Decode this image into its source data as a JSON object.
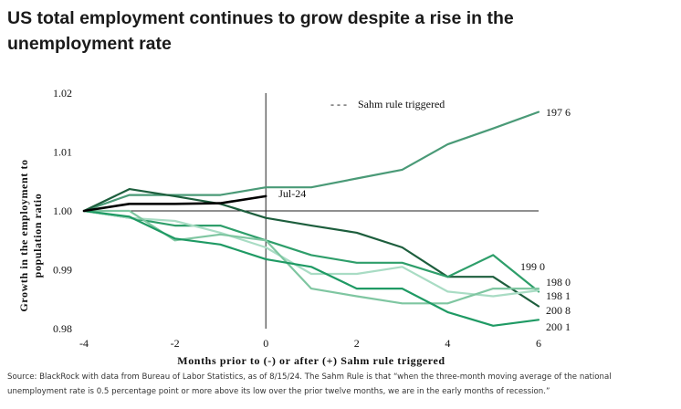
{
  "title_line1": "US total employment continues to grow despite a rise in the",
  "title_line2": "unemployment rate",
  "source_line1": "Source: BlackRock with data from Bureau of Labor Statistics, as of 8/15/24. The Sahm Rule is that “when the three-month moving average of the national",
  "source_line2": "unemployment rate is 0.5 percentage point or more above its low over the prior twelve months, we are in the early months of recession.”",
  "chart_data": {
    "type": "line",
    "xlabel": "Months prior to (-) or after (+) Sahm rule triggered",
    "ylabel_line1": "Growth in the employment to",
    "ylabel_line2": "population ratio",
    "xlim": [
      -4,
      6
    ],
    "ylim": [
      0.98,
      1.02
    ],
    "x_ticks": [
      -4,
      -2,
      0,
      2,
      4,
      6
    ],
    "y_ticks": [
      0.98,
      0.99,
      1.0,
      1.01,
      1.02
    ],
    "x_tick_labels": [
      "-4",
      "-2",
      "0",
      "2",
      "4",
      "6"
    ],
    "y_tick_labels": [
      "0.98",
      "0.99",
      "1.00",
      "1.01",
      "1.02"
    ],
    "legend": {
      "label": "Sahm rule triggered",
      "position": "top-right",
      "marker": "- - -"
    },
    "vertical_line_x": 0,
    "horizontal_line_y": 1.0,
    "series": [
      {
        "name": "1976",
        "display": "197 6",
        "color": "#4a9a77",
        "width": 2.2,
        "x": [
          -4,
          -3,
          -2,
          -1,
          0,
          1,
          2,
          3,
          4,
          5,
          6
        ],
        "y": [
          1.0,
          1.0027,
          1.0027,
          1.0027,
          1.004,
          1.004,
          1.0055,
          1.007,
          1.0113,
          1.014,
          1.0168
        ]
      },
      {
        "name": "1990",
        "display": "199 0",
        "color": "#1d5e3d",
        "width": 2.2,
        "x": [
          -4,
          -3,
          -2,
          -1,
          0,
          1,
          2,
          3,
          4,
          5,
          6
        ],
        "y": [
          1.0,
          1.0037,
          1.0025,
          1.0012,
          0.9988,
          0.9975,
          0.9963,
          0.9938,
          0.9888,
          0.9888,
          0.9838
        ]
      },
      {
        "name": "1980",
        "display": "198 0",
        "color": "#2e9e6a",
        "width": 2.2,
        "x": [
          -4,
          -3,
          -2,
          -1,
          0,
          1,
          2,
          3,
          4,
          5,
          6
        ],
        "y": [
          1.0,
          0.9988,
          0.9975,
          0.9975,
          0.995,
          0.9925,
          0.9912,
          0.9912,
          0.9888,
          0.9925,
          0.9863
        ]
      },
      {
        "name": "1981",
        "display": "198 1",
        "color": "#a9dcc4",
        "width": 2.2,
        "x": [
          -4,
          -3,
          -2,
          -1,
          0,
          1,
          2,
          3,
          4,
          5,
          6
        ],
        "y": [
          1.0,
          0.9988,
          0.9983,
          0.9963,
          0.9938,
          0.9893,
          0.9893,
          0.9905,
          0.9863,
          0.9855,
          0.9865
        ]
      },
      {
        "name": "2008",
        "display": "200 8",
        "color": "#7fc6a1",
        "width": 2.2,
        "x": [
          -4,
          -3,
          -2,
          -1,
          0,
          1,
          2,
          3,
          4,
          5,
          6
        ],
        "y": [
          1.0,
          1.0,
          0.995,
          0.996,
          0.995,
          0.9868,
          0.9855,
          0.9843,
          0.9843,
          0.9868,
          0.9868
        ]
      },
      {
        "name": "2001",
        "display": "200 1",
        "color": "#1f9a64",
        "width": 2.2,
        "x": [
          -4,
          -3,
          -2,
          -1,
          0,
          1,
          2,
          3,
          4,
          5,
          6
        ],
        "y": [
          1.0,
          0.999,
          0.9953,
          0.9943,
          0.9918,
          0.9905,
          0.9868,
          0.9868,
          0.9828,
          0.9805,
          0.9815
        ]
      },
      {
        "name": "Jul-24",
        "display": "Jul-24",
        "color": "#000000",
        "width": 2.6,
        "x": [
          -4,
          -3,
          -2,
          -1,
          0
        ],
        "y": [
          1.0,
          1.0012,
          1.0012,
          1.0013,
          1.0025
        ]
      }
    ]
  }
}
